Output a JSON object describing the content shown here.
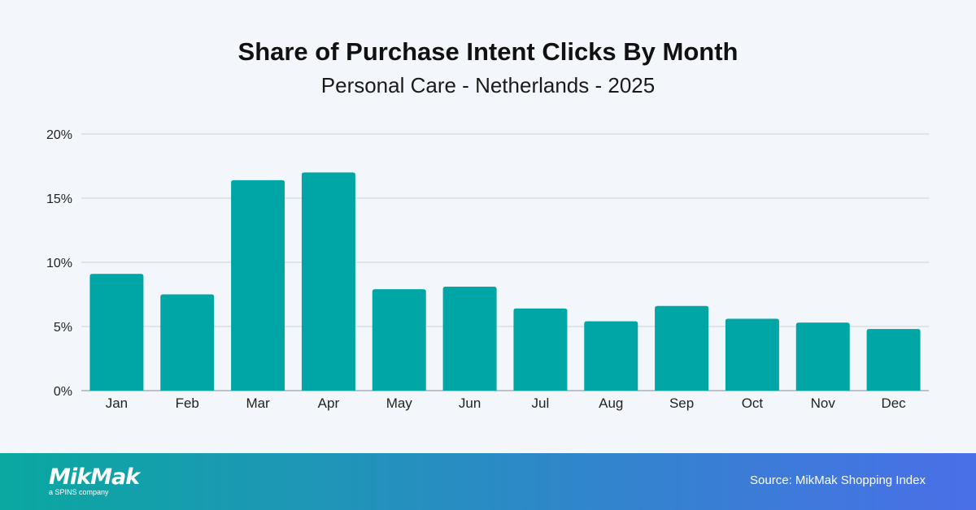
{
  "chart_data": {
    "type": "bar",
    "title": "Share of Purchase Intent Clicks By Month",
    "subtitle": "Personal Care - Netherlands - 2025",
    "categories": [
      "Jan",
      "Feb",
      "Mar",
      "Apr",
      "May",
      "Jun",
      "Jul",
      "Aug",
      "Sep",
      "Oct",
      "Nov",
      "Dec"
    ],
    "values": [
      9.1,
      7.5,
      16.4,
      17.0,
      7.9,
      8.1,
      6.4,
      5.4,
      6.6,
      5.6,
      5.3,
      4.8
    ],
    "unit": "%",
    "ylim": [
      0,
      20
    ],
    "yticks": [
      0,
      5,
      10,
      15,
      20
    ],
    "ytick_labels": [
      "0%",
      "5%",
      "10%",
      "15%",
      "20%"
    ],
    "grid": true,
    "bar_color": "#00a6a6",
    "xlabel": "",
    "ylabel": ""
  },
  "footer": {
    "logo_text": "MikMak",
    "logo_tagline": "a SPINS company",
    "source": "Source: MikMak Shopping Index",
    "gradient_start": "#0aa8a0",
    "gradient_end": "#4a6fe8"
  }
}
